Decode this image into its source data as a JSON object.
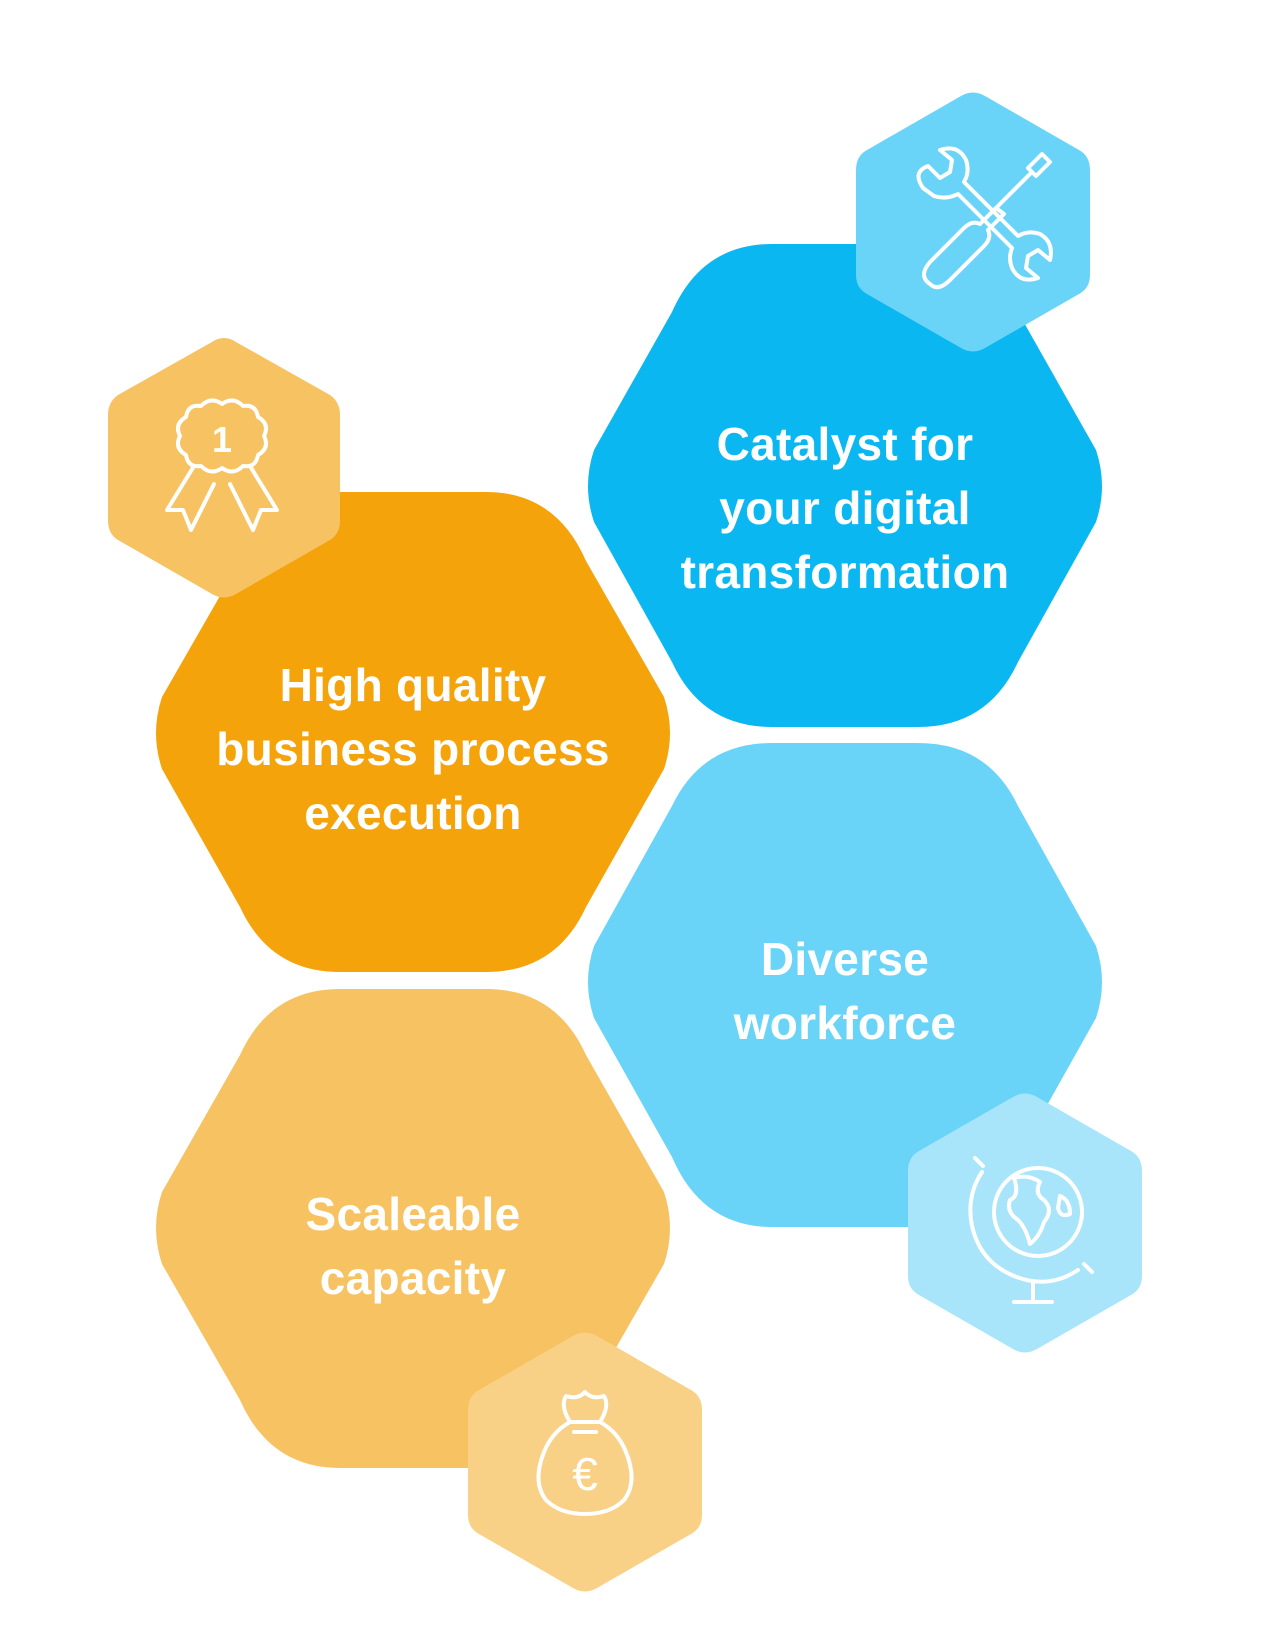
{
  "colors": {
    "orange_dark": "#F4A30A",
    "orange_medium": "#F7C262",
    "orange_light": "#F9D186",
    "blue_dark": "#0BB7F1",
    "blue_medium": "#6AD4F8",
    "blue_light": "#A8E5FB",
    "icon_stroke": "#FFFFFF"
  },
  "hexagons": [
    {
      "id": "quality",
      "lines": [
        "High quality",
        "business process",
        "execution"
      ],
      "color": "#F4A30A",
      "icon": "award-ribbon-icon"
    },
    {
      "id": "catalyst",
      "lines": [
        "Catalyst for",
        "your digital",
        "transformation"
      ],
      "color": "#0BB7F1",
      "icon": "tools-icon"
    },
    {
      "id": "diverse",
      "lines": [
        "Diverse",
        "workforce"
      ],
      "color": "#6AD4F8",
      "icon": "globe-icon"
    },
    {
      "id": "scaleable",
      "lines": [
        "Scaleable",
        "capacity"
      ],
      "color": "#F7C262",
      "icon": "money-bag-euro-icon"
    }
  ],
  "badges": [
    {
      "icon": "award-ribbon-icon",
      "number": "1"
    },
    {
      "icon": "tools-icon"
    },
    {
      "icon": "globe-icon"
    },
    {
      "icon": "money-bag-euro-icon",
      "symbol": "€"
    }
  ]
}
